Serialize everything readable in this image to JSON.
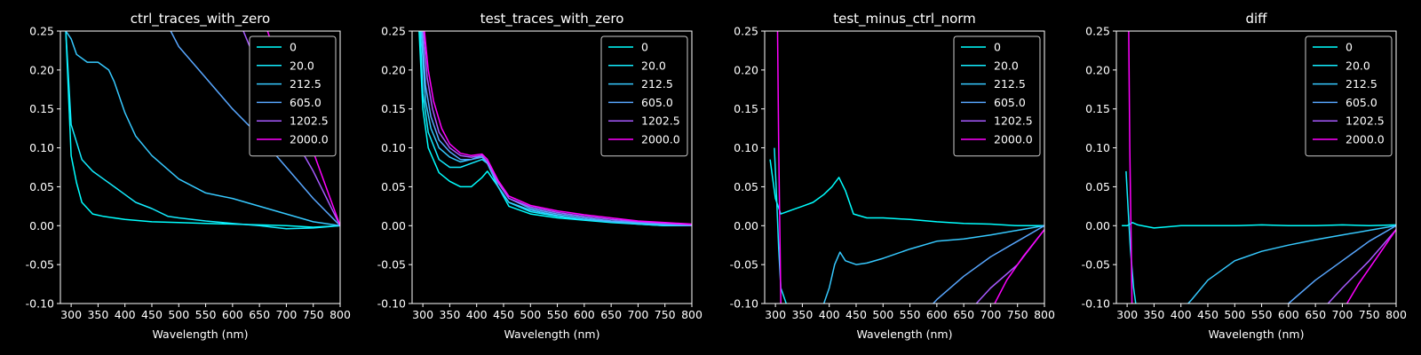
{
  "chart_data": [
    {
      "type": "line",
      "title": "ctrl_traces_with_zero",
      "xlabel": "Wavelength (nm)",
      "ylabel": "",
      "xlim": [
        280,
        800
      ],
      "ylim": [
        -0.1,
        0.25
      ],
      "xticks": [
        300,
        350,
        400,
        450,
        500,
        550,
        600,
        650,
        700,
        750,
        800
      ],
      "yticks": [
        -0.1,
        -0.05,
        0.0,
        0.05,
        0.1,
        0.15,
        0.2,
        0.25
      ],
      "legend": "top-right",
      "grid": false,
      "series": [
        {
          "name": "0",
          "color": "#00ffff",
          "x": [
            290,
            300,
            310,
            320,
            340,
            360,
            400,
            450,
            500,
            550,
            600,
            650,
            700,
            750,
            800
          ],
          "y": [
            0.25,
            0.09,
            0.055,
            0.03,
            0.015,
            0.012,
            0.008,
            0.005,
            0.004,
            0.003,
            0.002,
            0.001,
            0.0,
            -0.002,
            0.0
          ]
        },
        {
          "name": "20.0",
          "color": "#13ecff",
          "x": [
            290,
            300,
            320,
            340,
            360,
            380,
            400,
            420,
            450,
            480,
            500,
            550,
            600,
            650,
            700,
            750,
            800
          ],
          "y": [
            0.25,
            0.13,
            0.085,
            0.07,
            0.06,
            0.05,
            0.04,
            0.03,
            0.022,
            0.012,
            0.01,
            0.006,
            0.003,
            0.0,
            -0.004,
            -0.003,
            0.0
          ]
        },
        {
          "name": "212.5",
          "color": "#36c9ff",
          "x": [
            290,
            300,
            310,
            330,
            350,
            370,
            380,
            400,
            420,
            450,
            500,
            550,
            600,
            650,
            700,
            750,
            800
          ],
          "y": [
            0.25,
            0.24,
            0.22,
            0.21,
            0.21,
            0.2,
            0.185,
            0.145,
            0.115,
            0.09,
            0.06,
            0.042,
            0.035,
            0.025,
            0.015,
            0.005,
            0.0
          ]
        },
        {
          "name": "605.0",
          "color": "#58a7ff",
          "x": [
            485,
            500,
            550,
            600,
            650,
            700,
            750,
            800
          ],
          "y": [
            0.25,
            0.23,
            0.19,
            0.15,
            0.115,
            0.075,
            0.035,
            0.0
          ]
        },
        {
          "name": "1202.5",
          "color": "#a75aff",
          "x": [
            620,
            650,
            700,
            750,
            800
          ],
          "y": [
            0.25,
            0.2,
            0.13,
            0.07,
            0.0
          ]
        },
        {
          "name": "2000.0",
          "color": "#ff00ff",
          "x": [
            665,
            700,
            750,
            800
          ],
          "y": [
            0.25,
            0.18,
            0.095,
            0.0
          ]
        }
      ]
    },
    {
      "type": "line",
      "title": "test_traces_with_zero",
      "xlabel": "Wavelength (nm)",
      "ylabel": "",
      "xlim": [
        280,
        800
      ],
      "ylim": [
        -0.1,
        0.25
      ],
      "xticks": [
        300,
        350,
        400,
        450,
        500,
        550,
        600,
        650,
        700,
        750,
        800
      ],
      "yticks": [
        -0.1,
        -0.05,
        0.0,
        0.05,
        0.1,
        0.15,
        0.2,
        0.25
      ],
      "legend": "top-right",
      "grid": false,
      "series": [
        {
          "name": "0",
          "color": "#00ffff",
          "x": [
            293,
            300,
            310,
            330,
            350,
            370,
            390,
            410,
            420,
            440,
            460,
            500,
            550,
            600,
            650,
            700,
            750,
            800
          ],
          "y": [
            0.25,
            0.15,
            0.1,
            0.068,
            0.057,
            0.05,
            0.05,
            0.062,
            0.07,
            0.05,
            0.025,
            0.015,
            0.01,
            0.007,
            0.004,
            0.002,
            0.0,
            0.0
          ]
        },
        {
          "name": "20.0",
          "color": "#13ecff",
          "x": [
            295,
            300,
            310,
            330,
            350,
            370,
            390,
            410,
            420,
            440,
            460,
            500,
            550,
            600,
            650,
            700,
            750,
            800
          ],
          "y": [
            0.25,
            0.17,
            0.12,
            0.085,
            0.075,
            0.075,
            0.08,
            0.085,
            0.08,
            0.05,
            0.03,
            0.018,
            0.012,
            0.008,
            0.005,
            0.002,
            0.0,
            0.0
          ]
        },
        {
          "name": "212.5",
          "color": "#36c9ff",
          "x": [
            297,
            305,
            315,
            330,
            350,
            370,
            390,
            410,
            420,
            440,
            460,
            500,
            550,
            600,
            650,
            700,
            750,
            800
          ],
          "y": [
            0.25,
            0.16,
            0.125,
            0.1,
            0.088,
            0.082,
            0.085,
            0.09,
            0.08,
            0.05,
            0.03,
            0.02,
            0.013,
            0.008,
            0.005,
            0.003,
            0.001,
            0.0
          ]
        },
        {
          "name": "605.0",
          "color": "#58a7ff",
          "x": [
            299,
            305,
            315,
            330,
            350,
            370,
            390,
            410,
            420,
            440,
            460,
            500,
            550,
            600,
            650,
            700,
            750,
            800
          ],
          "y": [
            0.25,
            0.18,
            0.14,
            0.11,
            0.095,
            0.085,
            0.085,
            0.088,
            0.08,
            0.055,
            0.035,
            0.022,
            0.015,
            0.01,
            0.006,
            0.004,
            0.002,
            0.0
          ]
        },
        {
          "name": "1202.5",
          "color": "#a75aff",
          "x": [
            301,
            308,
            318,
            330,
            350,
            370,
            390,
            410,
            420,
            440,
            460,
            500,
            550,
            600,
            650,
            700,
            750,
            800
          ],
          "y": [
            0.25,
            0.19,
            0.15,
            0.12,
            0.1,
            0.09,
            0.088,
            0.09,
            0.082,
            0.055,
            0.035,
            0.024,
            0.017,
            0.012,
            0.008,
            0.005,
            0.003,
            0.001
          ]
        },
        {
          "name": "2000.0",
          "color": "#ff00ff",
          "x": [
            303,
            310,
            320,
            335,
            350,
            370,
            390,
            410,
            420,
            440,
            460,
            500,
            550,
            600,
            650,
            700,
            750,
            800
          ],
          "y": [
            0.25,
            0.2,
            0.16,
            0.125,
            0.105,
            0.093,
            0.09,
            0.092,
            0.085,
            0.058,
            0.038,
            0.026,
            0.019,
            0.014,
            0.01,
            0.006,
            0.004,
            0.002
          ]
        }
      ]
    },
    {
      "type": "line",
      "title": "test_minus_ctrl_norm",
      "xlabel": "Wavelength (nm)",
      "ylabel": "",
      "xlim": [
        280,
        800
      ],
      "ylim": [
        -0.1,
        0.25
      ],
      "xticks": [
        300,
        350,
        400,
        450,
        500,
        550,
        600,
        650,
        700,
        750,
        800
      ],
      "yticks": [
        -0.1,
        -0.05,
        0.0,
        0.05,
        0.1,
        0.15,
        0.2,
        0.25
      ],
      "legend": "top-right",
      "grid": false,
      "series": [
        {
          "name": "0",
          "color": "#00ffff",
          "x": [
            290,
            295,
            300,
            310,
            330,
            350,
            370,
            390,
            405,
            418,
            430,
            445,
            470,
            500,
            550,
            600,
            650,
            700,
            750,
            800
          ],
          "y": [
            0.085,
            0.06,
            0.035,
            0.015,
            0.02,
            0.025,
            0.03,
            0.04,
            0.05,
            0.062,
            0.045,
            0.015,
            0.01,
            0.01,
            0.008,
            0.005,
            0.003,
            0.002,
            0.0,
            0.0
          ]
        },
        {
          "name": "20.0",
          "color": "#13ecff",
          "x": [
            298,
            302,
            306,
            310,
            330
          ],
          "y": [
            0.1,
            0.04,
            -0.03,
            -0.08,
            -0.12
          ]
        },
        {
          "name": "212.5",
          "color": "#36c9ff",
          "x": [
            380,
            400,
            410,
            420,
            430,
            450,
            470,
            500,
            550,
            600,
            650,
            700,
            750,
            800
          ],
          "y": [
            -0.12,
            -0.08,
            -0.05,
            -0.034,
            -0.045,
            -0.05,
            -0.048,
            -0.042,
            -0.03,
            -0.02,
            -0.017,
            -0.012,
            -0.006,
            0.0
          ]
        },
        {
          "name": "605.0",
          "color": "#58a7ff",
          "x": [
            580,
            600,
            650,
            700,
            750,
            800
          ],
          "y": [
            -0.11,
            -0.095,
            -0.065,
            -0.04,
            -0.02,
            0.0
          ]
        },
        {
          "name": "1202.5",
          "color": "#a75aff",
          "x": [
            660,
            700,
            750,
            800
          ],
          "y": [
            -0.11,
            -0.08,
            -0.05,
            -0.005
          ]
        },
        {
          "name": "2000.0",
          "color": "#ff00ff",
          "x": [
            304,
            306,
            308,
            310
          ],
          "y": [
            0.25,
            0.1,
            0.0,
            -0.1
          ]
        },
        {
          "name": "",
          "color": "#ff00ff",
          "x": [
            700,
            730,
            760,
            800
          ],
          "y": [
            -0.11,
            -0.07,
            -0.04,
            -0.005
          ]
        }
      ]
    },
    {
      "type": "line",
      "title": "diff",
      "xlabel": "Wavelength (nm)",
      "ylabel": "",
      "xlim": [
        280,
        800
      ],
      "ylim": [
        -0.1,
        0.25
      ],
      "xticks": [
        300,
        350,
        400,
        450,
        500,
        550,
        600,
        650,
        700,
        750,
        800
      ],
      "yticks": [
        -0.1,
        -0.05,
        0.0,
        0.05,
        0.1,
        0.15,
        0.2,
        0.25
      ],
      "legend": "top-right",
      "grid": false,
      "series": [
        {
          "name": "0",
          "color": "#00ffff",
          "x": [
            290,
            300,
            310,
            320,
            350,
            400,
            450,
            500,
            550,
            600,
            650,
            700,
            750,
            800
          ],
          "y": [
            0.0,
            0.0,
            0.004,
            0.001,
            -0.003,
            0.0,
            0.0,
            0.0,
            0.001,
            0.0,
            0.0,
            0.001,
            0.0,
            0.001
          ]
        },
        {
          "name": "20.0",
          "color": "#13ecff",
          "x": [
            298,
            302,
            306,
            312,
            320
          ],
          "y": [
            0.07,
            0.02,
            -0.03,
            -0.08,
            -0.12
          ]
        },
        {
          "name": "212.5",
          "color": "#36c9ff",
          "x": [
            400,
            420,
            450,
            500,
            550,
            600,
            650,
            700,
            750,
            800
          ],
          "y": [
            -0.11,
            -0.095,
            -0.07,
            -0.045,
            -0.033,
            -0.025,
            -0.018,
            -0.012,
            -0.006,
            0.0
          ]
        },
        {
          "name": "605.0",
          "color": "#58a7ff",
          "x": [
            590,
            600,
            650,
            700,
            750,
            800
          ],
          "y": [
            -0.11,
            -0.1,
            -0.07,
            -0.045,
            -0.02,
            0.0
          ]
        },
        {
          "name": "1202.5",
          "color": "#a75aff",
          "x": [
            660,
            700,
            750,
            800
          ],
          "y": [
            -0.11,
            -0.08,
            -0.045,
            -0.005
          ]
        },
        {
          "name": "2000.0",
          "color": "#ff00ff",
          "x": [
            303,
            305,
            307,
            309
          ],
          "y": [
            0.25,
            0.1,
            0.0,
            -0.1
          ]
        },
        {
          "name": "",
          "color": "#ff00ff",
          "x": [
            700,
            730,
            760,
            800
          ],
          "y": [
            -0.11,
            -0.075,
            -0.045,
            -0.005
          ]
        }
      ]
    }
  ]
}
